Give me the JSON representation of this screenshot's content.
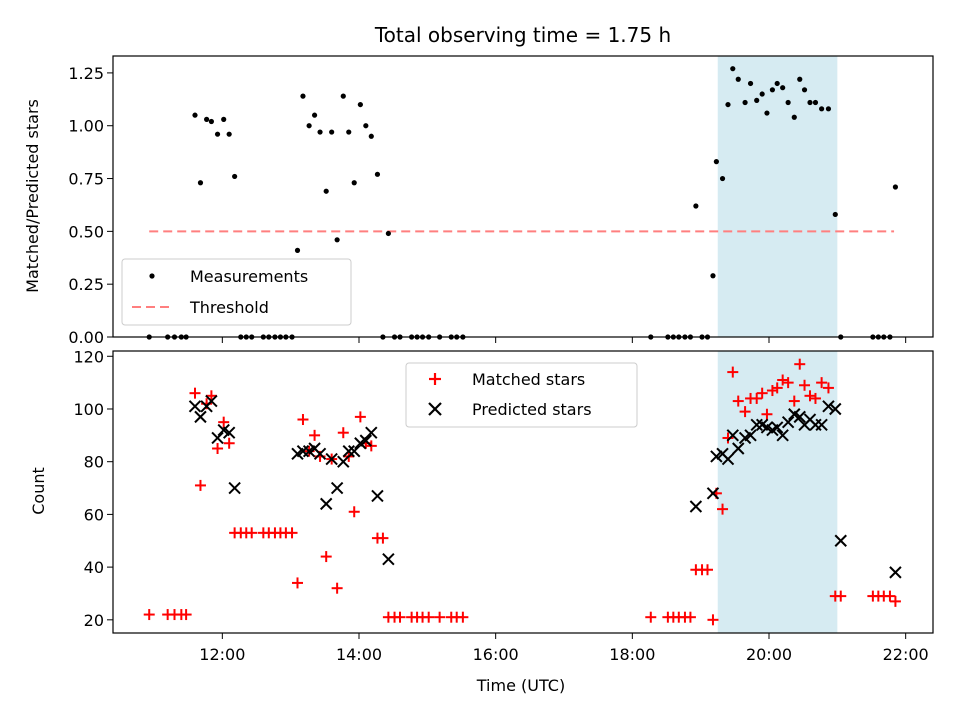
{
  "chart_data": {
    "type": "scatter",
    "title": "Total observing time = 1.75 h",
    "xlabel": "Time (UTC)",
    "x_ticks": [
      "12:00",
      "14:00",
      "16:00",
      "18:00",
      "20:00",
      "22:00"
    ],
    "x_range_hours": [
      10.4,
      22.4
    ],
    "highlight_span_hours": [
      19.25,
      21.0
    ],
    "highlight_color": "#add8e6",
    "panels": [
      {
        "name": "ratio",
        "ylabel": "Matched/Predicted stars",
        "ylim": [
          0,
          1.33
        ],
        "yticks": [
          "0.00",
          "0.25",
          "0.50",
          "0.75",
          "1.00",
          "1.25"
        ],
        "threshold": {
          "label": "Threshold",
          "value": 0.5,
          "x_start": 10.93,
          "x_end": 21.83,
          "color": "#ff7f7f"
        },
        "series": [
          {
            "name": "Measurements",
            "color": "#000000",
            "points": [
              [
                10.93,
                0
              ],
              [
                11.2,
                0
              ],
              [
                11.3,
                0
              ],
              [
                11.4,
                0
              ],
              [
                11.47,
                0
              ],
              [
                11.6,
                1.05
              ],
              [
                11.68,
                0.73
              ],
              [
                11.77,
                1.03
              ],
              [
                11.84,
                1.02
              ],
              [
                11.93,
                0.96
              ],
              [
                12.02,
                1.03
              ],
              [
                12.1,
                0.96
              ],
              [
                12.18,
                0.76
              ],
              [
                12.27,
                0
              ],
              [
                12.35,
                0
              ],
              [
                12.43,
                0
              ],
              [
                12.6,
                0
              ],
              [
                12.68,
                0
              ],
              [
                12.77,
                0
              ],
              [
                12.85,
                0
              ],
              [
                12.93,
                0
              ],
              [
                13.02,
                0
              ],
              [
                13.1,
                0.41
              ],
              [
                13.18,
                1.14
              ],
              [
                13.27,
                1.0
              ],
              [
                13.35,
                1.05
              ],
              [
                13.43,
                0.97
              ],
              [
                13.52,
                0.69
              ],
              [
                13.6,
                0.97
              ],
              [
                13.68,
                0.46
              ],
              [
                13.77,
                1.14
              ],
              [
                13.85,
                0.97
              ],
              [
                13.93,
                0.73
              ],
              [
                14.02,
                1.1
              ],
              [
                14.1,
                1.0
              ],
              [
                14.18,
                0.95
              ],
              [
                14.27,
                0.77
              ],
              [
                14.35,
                0
              ],
              [
                14.43,
                0.49
              ],
              [
                14.52,
                0
              ],
              [
                14.6,
                0
              ],
              [
                14.77,
                0
              ],
              [
                14.85,
                0
              ],
              [
                14.93,
                0
              ],
              [
                15.02,
                0
              ],
              [
                15.18,
                0
              ],
              [
                15.35,
                0
              ],
              [
                15.43,
                0
              ],
              [
                15.52,
                0
              ],
              [
                18.27,
                0
              ],
              [
                18.52,
                0
              ],
              [
                18.6,
                0
              ],
              [
                18.68,
                0
              ],
              [
                18.77,
                0
              ],
              [
                18.85,
                0
              ],
              [
                18.93,
                0.62
              ],
              [
                19.02,
                0
              ],
              [
                19.1,
                0
              ],
              [
                19.18,
                0.29
              ],
              [
                19.23,
                0.83
              ],
              [
                19.32,
                0.75
              ],
              [
                19.4,
                1.1
              ],
              [
                19.47,
                1.27
              ],
              [
                19.55,
                1.22
              ],
              [
                19.65,
                1.11
              ],
              [
                19.73,
                1.2
              ],
              [
                19.82,
                1.12
              ],
              [
                19.9,
                1.15
              ],
              [
                19.97,
                1.06
              ],
              [
                20.05,
                1.17
              ],
              [
                20.12,
                1.2
              ],
              [
                20.2,
                1.18
              ],
              [
                20.28,
                1.11
              ],
              [
                20.37,
                1.04
              ],
              [
                20.45,
                1.22
              ],
              [
                20.52,
                1.17
              ],
              [
                20.6,
                1.11
              ],
              [
                20.68,
                1.11
              ],
              [
                20.77,
                1.08
              ],
              [
                20.87,
                1.08
              ],
              [
                20.97,
                0.58
              ],
              [
                21.05,
                0
              ],
              [
                21.52,
                0
              ],
              [
                21.6,
                0
              ],
              [
                21.68,
                0
              ],
              [
                21.77,
                0
              ],
              [
                21.85,
                0.71
              ]
            ]
          }
        ],
        "legend": [
          "Measurements",
          "Threshold"
        ],
        "legend_position": "lower-left"
      },
      {
        "name": "counts",
        "ylabel": "Count",
        "ylim": [
          15,
          122
        ],
        "yticks": [
          "20",
          "40",
          "60",
          "80",
          "100",
          "120"
        ],
        "series": [
          {
            "name": "Matched stars",
            "marker": "plus",
            "color": "#ff0000",
            "points": [
              [
                10.93,
                22
              ],
              [
                11.2,
                22
              ],
              [
                11.3,
                22
              ],
              [
                11.4,
                22
              ],
              [
                11.47,
                22
              ],
              [
                11.6,
                106
              ],
              [
                11.68,
                71
              ],
              [
                11.77,
                102
              ],
              [
                11.84,
                105
              ],
              [
                11.93,
                85
              ],
              [
                12.02,
                95
              ],
              [
                12.1,
                87
              ],
              [
                12.18,
                53
              ],
              [
                12.27,
                53
              ],
              [
                12.35,
                53
              ],
              [
                12.43,
                53
              ],
              [
                12.6,
                53
              ],
              [
                12.68,
                53
              ],
              [
                12.77,
                53
              ],
              [
                12.85,
                53
              ],
              [
                12.93,
                53
              ],
              [
                13.02,
                53
              ],
              [
                13.1,
                34
              ],
              [
                13.18,
                96
              ],
              [
                13.27,
                84
              ],
              [
                13.35,
                90
              ],
              [
                13.43,
                82
              ],
              [
                13.52,
                44
              ],
              [
                13.6,
                81
              ],
              [
                13.68,
                32
              ],
              [
                13.77,
                91
              ],
              [
                13.85,
                82
              ],
              [
                13.93,
                61
              ],
              [
                14.02,
                97
              ],
              [
                14.1,
                87
              ],
              [
                14.18,
                86
              ],
              [
                14.27,
                51
              ],
              [
                14.35,
                51
              ],
              [
                14.43,
                21
              ],
              [
                14.52,
                21
              ],
              [
                14.6,
                21
              ],
              [
                14.77,
                21
              ],
              [
                14.85,
                21
              ],
              [
                14.93,
                21
              ],
              [
                15.02,
                21
              ],
              [
                15.18,
                21
              ],
              [
                15.35,
                21
              ],
              [
                15.43,
                21
              ],
              [
                15.52,
                21
              ],
              [
                18.27,
                21
              ],
              [
                18.52,
                21
              ],
              [
                18.6,
                21
              ],
              [
                18.68,
                21
              ],
              [
                18.77,
                21
              ],
              [
                18.85,
                21
              ],
              [
                18.93,
                39
              ],
              [
                19.02,
                39
              ],
              [
                19.1,
                39
              ],
              [
                19.18,
                20
              ],
              [
                19.23,
                68
              ],
              [
                19.32,
                62
              ],
              [
                19.4,
                89
              ],
              [
                19.47,
                114
              ],
              [
                19.55,
                103
              ],
              [
                19.65,
                99
              ],
              [
                19.73,
                104
              ],
              [
                19.82,
                104
              ],
              [
                19.9,
                106
              ],
              [
                19.97,
                98
              ],
              [
                20.05,
                107
              ],
              [
                20.12,
                108
              ],
              [
                20.2,
                111
              ],
              [
                20.28,
                110
              ],
              [
                20.37,
                103
              ],
              [
                20.45,
                117
              ],
              [
                20.52,
                109
              ],
              [
                20.6,
                105
              ],
              [
                20.68,
                104
              ],
              [
                20.77,
                110
              ],
              [
                20.87,
                108
              ],
              [
                20.97,
                29
              ],
              [
                21.05,
                29
              ],
              [
                21.52,
                29
              ],
              [
                21.6,
                29
              ],
              [
                21.68,
                29
              ],
              [
                21.77,
                29
              ],
              [
                21.85,
                27
              ]
            ]
          },
          {
            "name": "Predicted stars",
            "marker": "x",
            "color": "#000000",
            "points": [
              [
                11.6,
                101
              ],
              [
                11.68,
                97
              ],
              [
                11.77,
                101
              ],
              [
                11.84,
                103
              ],
              [
                11.93,
                89
              ],
              [
                12.02,
                92
              ],
              [
                12.1,
                91
              ],
              [
                12.18,
                70
              ],
              [
                13.1,
                83
              ],
              [
                13.18,
                84
              ],
              [
                13.27,
                84
              ],
              [
                13.35,
                85
              ],
              [
                13.43,
                83
              ],
              [
                13.52,
                64
              ],
              [
                13.6,
                81
              ],
              [
                13.68,
                70
              ],
              [
                13.77,
                80
              ],
              [
                13.85,
                84
              ],
              [
                13.93,
                84
              ],
              [
                14.02,
                87
              ],
              [
                14.1,
                88
              ],
              [
                14.18,
                91
              ],
              [
                14.27,
                67
              ],
              [
                14.43,
                43
              ],
              [
                18.93,
                63
              ],
              [
                19.18,
                68
              ],
              [
                19.23,
                82
              ],
              [
                19.32,
                83
              ],
              [
                19.4,
                81
              ],
              [
                19.47,
                90
              ],
              [
                19.55,
                85
              ],
              [
                19.65,
                89
              ],
              [
                19.73,
                90
              ],
              [
                19.82,
                94
              ],
              [
                19.9,
                94
              ],
              [
                19.97,
                93
              ],
              [
                20.05,
                92
              ],
              [
                20.12,
                93
              ],
              [
                20.2,
                90
              ],
              [
                20.28,
                95
              ],
              [
                20.37,
                98
              ],
              [
                20.45,
                97
              ],
              [
                20.52,
                94
              ],
              [
                20.6,
                96
              ],
              [
                20.68,
                94
              ],
              [
                20.77,
                94
              ],
              [
                20.87,
                101
              ],
              [
                20.97,
                100
              ],
              [
                21.05,
                50
              ],
              [
                21.85,
                38
              ]
            ]
          }
        ],
        "legend": [
          "Matched stars",
          "Predicted stars"
        ],
        "legend_position": "upper-center"
      }
    ]
  }
}
